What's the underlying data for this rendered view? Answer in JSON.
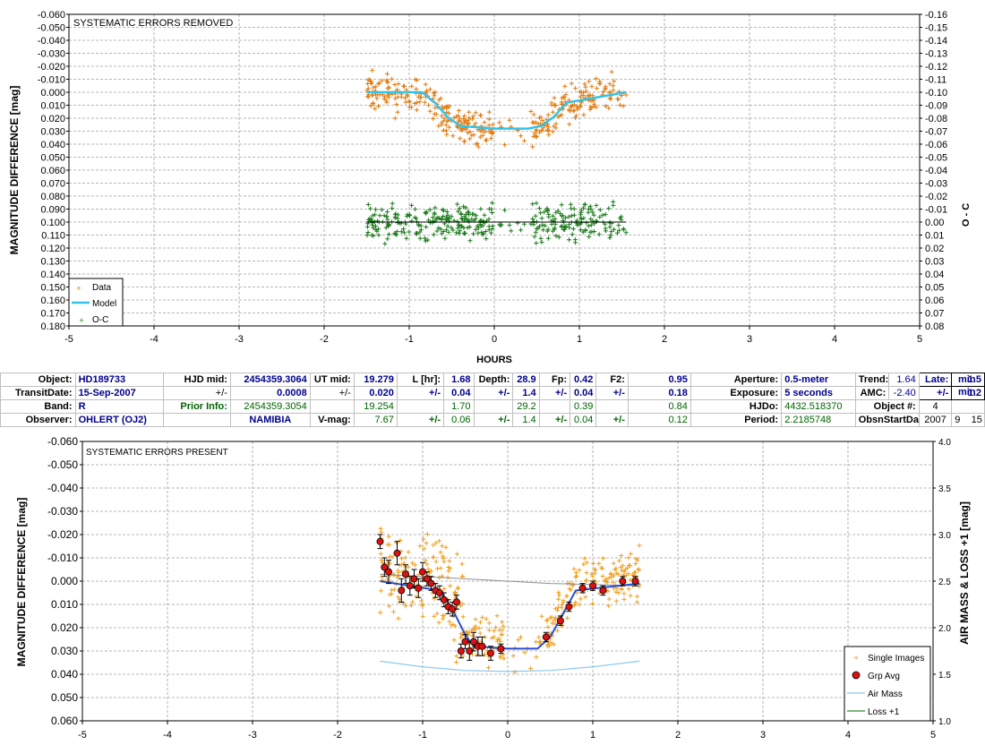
{
  "chart_data": [
    {
      "type": "scatter",
      "title": "SYSTEMATIC ERRORS REMOVED",
      "xlabel": "HOURS",
      "ylabel": "MAGNITUDE DIFFERENCE [mag]",
      "y2label": "O - C",
      "xlim": [
        -5,
        5
      ],
      "ylim": [
        -0.06,
        0.18
      ],
      "y_inverted": true,
      "y2lim": [
        -0.16,
        0.08
      ],
      "grid": true,
      "legend_position": "bottom-left",
      "x_ticks": [
        "-5",
        "-4",
        "-3",
        "-2",
        "-1",
        "0",
        "1",
        "2",
        "3",
        "4",
        "5"
      ],
      "y_ticks": [
        "-0.060",
        "-0.050",
        "-0.040",
        "-0.030",
        "-0.020",
        "-0.010",
        "0.000",
        "0.010",
        "0.020",
        "0.030",
        "0.040",
        "0.050",
        "0.060",
        "0.070",
        "0.080",
        "0.090",
        "0.100",
        "0.110",
        "0.120",
        "0.130",
        "0.140",
        "0.150",
        "0.160",
        "0.170",
        "0.180"
      ],
      "y2_ticks": [
        "-0.16",
        "-0.15",
        "-0.14",
        "-0.13",
        "-0.12",
        "-0.11",
        "-0.10",
        "-0.09",
        "-0.08",
        "-0.07",
        "-0.06",
        "-0.05",
        "-0.04",
        "-0.03",
        "-0.02",
        "-0.01",
        "0.00",
        "0.01",
        "0.02",
        "0.03",
        "0.04",
        "0.05",
        "0.06",
        "0.07",
        "0.08"
      ],
      "legend": [
        "Data",
        "Model",
        "O-C"
      ],
      "colors": {
        "data": "#e07b10",
        "model": "#33c3e8",
        "oc": "#1a7a1a",
        "baseline": "#000000"
      },
      "series": [
        {
          "name": "Model",
          "x": [
            -1.5,
            -0.85,
            -0.7,
            -0.55,
            -0.4,
            0,
            0.4,
            0.55,
            0.7,
            0.85,
            1.55
          ],
          "y": [
            0,
            0,
            0.008,
            0.019,
            0.026,
            0.028,
            0.028,
            0.026,
            0.019,
            0.008,
            0
          ]
        },
        {
          "name": "Data",
          "note_style": "plus",
          "x_range": [
            -1.5,
            1.55
          ],
          "scatter": 0.014,
          "gap": [
            0.0,
            0.45
          ]
        },
        {
          "name": "O-C",
          "note_style": "plus",
          "x_range": [
            -1.5,
            1.55
          ],
          "center": 0.0,
          "scatter": 0.014,
          "gap": [
            0.0,
            0.45
          ]
        }
      ]
    },
    {
      "type": "scatter",
      "title": "SYSTEMATIC ERRORS PRESENT",
      "xlabel": "",
      "ylabel": "MAGNITUDE DIFFERENCE [mag]",
      "y2label": "AIR MASS & LOSS +1 [mag]",
      "xlim": [
        -5,
        5
      ],
      "ylim": [
        -0.06,
        0.06
      ],
      "y_inverted": true,
      "y2lim": [
        1.0,
        4.0
      ],
      "grid": true,
      "legend_position": "bottom-right",
      "x_ticks": [
        "-5",
        "-4",
        "-3",
        "-2",
        "-1",
        "0",
        "1",
        "2",
        "3",
        "4",
        "5"
      ],
      "y_ticks": [
        "-0.060",
        "-0.050",
        "-0.040",
        "-0.030",
        "-0.020",
        "-0.010",
        "0.000",
        "0.010",
        "0.020",
        "0.030",
        "0.040",
        "0.050",
        "0.060"
      ],
      "y2_ticks": [
        "4.0",
        "3.5",
        "3.0",
        "2.5",
        "2.0",
        "1.5",
        "1.0"
      ],
      "legend": [
        "Single Images",
        "Grp Avg",
        "Air Mass",
        "Loss +1"
      ],
      "colors": {
        "single": "#f0a020",
        "grp": "#e01010",
        "model": "#2a4fd0",
        "airmass": "#88c8f0",
        "trend": "#909090",
        "loss": "#2a8a2a"
      },
      "series": [
        {
          "name": "Grp Avg",
          "x": [
            -1.5,
            -1.45,
            -1.4,
            -1.3,
            -1.25,
            -1.2,
            -1.15,
            -1.1,
            -1.05,
            -1.0,
            -0.95,
            -0.9,
            -0.85,
            -0.8,
            -0.75,
            -0.7,
            -0.65,
            -0.6,
            -0.55,
            -0.5,
            -0.45,
            -0.4,
            -0.35,
            -0.3,
            -0.2,
            -0.08,
            0.45,
            0.62,
            0.72,
            0.88,
            1.0,
            1.12,
            1.35,
            1.5
          ],
          "y": [
            -0.017,
            -0.006,
            -0.004,
            -0.012,
            0.004,
            -0.003,
            0.002,
            -0.001,
            0.003,
            -0.004,
            -0.001,
            0.001,
            0.004,
            0.005,
            0.008,
            0.011,
            0.012,
            0.009,
            0.03,
            0.026,
            0.03,
            0.026,
            0.028,
            0.028,
            0.031,
            0.029,
            0.024,
            0.017,
            0.011,
            0.003,
            0.002,
            0.004,
            0.0,
            0.0
          ],
          "err": [
            0.003,
            0.004,
            0.005,
            0.005,
            0.005,
            0.004,
            0.004,
            0.004,
            0.004,
            0.004,
            0.003,
            0.003,
            0.003,
            0.003,
            0.003,
            0.003,
            0.003,
            0.003,
            0.003,
            0.003,
            0.004,
            0.004,
            0.004,
            0.004,
            0.003,
            0.002,
            0.002,
            0.002,
            0.002,
            0.002,
            0.002,
            0.002,
            0.002,
            0.002
          ]
        },
        {
          "name": "Model",
          "x": [
            -1.5,
            -0.8,
            -0.65,
            -0.5,
            -0.4,
            0,
            0.35,
            0.5,
            0.65,
            0.8,
            1.55
          ],
          "y": [
            0,
            0.004,
            0.012,
            0.023,
            0.028,
            0.029,
            0.029,
            0.024,
            0.014,
            0.004,
            0.001
          ]
        },
        {
          "name": "Air Mass",
          "x": [
            -1.5,
            -1.0,
            -0.5,
            0,
            0.5,
            1.0,
            1.55
          ],
          "y2": [
            1.64,
            1.58,
            1.54,
            1.53,
            1.54,
            1.58,
            1.64
          ]
        },
        {
          "name": "trend",
          "x": [
            -1.5,
            -0.5,
            0.5,
            1.55
          ],
          "y": [
            -0.003,
            -0.001,
            0.001,
            0.002
          ]
        }
      ]
    }
  ],
  "info": {
    "labels": {
      "object": "Object:",
      "transitdate": "TransitDate:",
      "band": "Band:",
      "observer": "Observer:",
      "hjd_mid": "HJD mid:",
      "pm": "+/-",
      "prior": "Prior Info:",
      "ut_mid": "UT mid:",
      "vmag": "V-mag:",
      "l_hr": "L [hr]:",
      "depth": "Depth:",
      "fp": "Fp:",
      "f2": "F2:",
      "aperture": "Aperture:",
      "exposure": "Exposure:",
      "hjdo": "HJDo:",
      "period": "Period:",
      "trend": "Trend:",
      "amc": "AMC:",
      "object_num": "Object #:",
      "obsn_start": "ObsnStartDate:",
      "late": "Late:",
      "min": "min"
    },
    "values": {
      "object": "HD189733",
      "transitdate": "15-Sep-2007",
      "band": "R",
      "observer": "OHLERT (OJ2)",
      "hjd_mid": "2454359.3064",
      "hjd_mid_err": "0.0008",
      "prior_hjd": "2454359.3054",
      "site": "NAMIBIA",
      "ut_mid": "19.279",
      "ut_mid_err": "0.020",
      "ut_mid_prior": "19.254",
      "vmag": "7.67",
      "l_hr": "1.68",
      "l_hr_err": "0.04",
      "l_hr_prior": "1.70",
      "l_hr_verr": "0.06",
      "depth": "28.9",
      "depth_err": "1.4",
      "depth_prior": "29.2",
      "depth_verr": "1.4",
      "fp": "0.42",
      "fp_err": "0.04",
      "fp_prior": "0.39",
      "fp_verr": "0.04",
      "f2": "0.95",
      "f2_err": "0.18",
      "f2_prior": "0.84",
      "f2_verr": "0.12",
      "aperture": "0.5-meter",
      "exposure": "5 seconds",
      "hjdo": "4432.518370",
      "period": "2.2185748",
      "trend": "1.64",
      "amc": "-2.40",
      "object_num": "4",
      "obsn_y": "2007",
      "obsn_m": "9",
      "obsn_d": "15",
      "late": "1.5",
      "late_err": "1.2"
    }
  }
}
